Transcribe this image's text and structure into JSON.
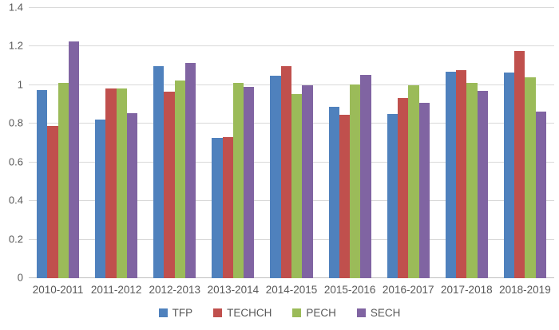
{
  "chart_data": {
    "type": "bar",
    "title": "",
    "xlabel": "",
    "ylabel": "",
    "categories": [
      "2010-2011",
      "2011-2012",
      "2012-2013",
      "2013-2014",
      "2014-2015",
      "2015-2016",
      "2016-2017",
      "2017-2018",
      "2018-2019"
    ],
    "series": [
      {
        "name": "TFP",
        "color": "#4F81BD",
        "values": [
          0.975,
          0.82,
          1.1,
          0.725,
          1.05,
          0.89,
          0.85,
          1.07,
          1.065
        ]
      },
      {
        "name": "TECHCH",
        "color": "#C0504D",
        "values": [
          0.79,
          0.985,
          0.965,
          0.73,
          1.1,
          0.845,
          0.935,
          1.08,
          1.175
        ]
      },
      {
        "name": "PECH",
        "color": "#9BBB59",
        "values": [
          1.01,
          0.985,
          1.025,
          1.01,
          0.955,
          1.005,
          1.0,
          1.01,
          1.04
        ]
      },
      {
        "name": "SECH",
        "color": "#8064A2",
        "values": [
          1.225,
          0.855,
          1.115,
          0.99,
          1.0,
          1.055,
          0.91,
          0.97,
          0.865
        ]
      }
    ],
    "ylim": [
      0,
      1.4
    ],
    "yticks": [
      0,
      0.2,
      0.4,
      0.6,
      0.8,
      1,
      1.2,
      1.4
    ],
    "ytick_labels": [
      "0",
      "0.2",
      "0.4",
      "0.6",
      "0.8",
      "1",
      "1.2",
      "1.4"
    ],
    "grid": true,
    "legend_position": "bottom"
  },
  "colors": {
    "background": "#FFFFFF",
    "text": "#595959",
    "gridline": "#D9D9D9",
    "axis_line": "#BFBFBF"
  }
}
